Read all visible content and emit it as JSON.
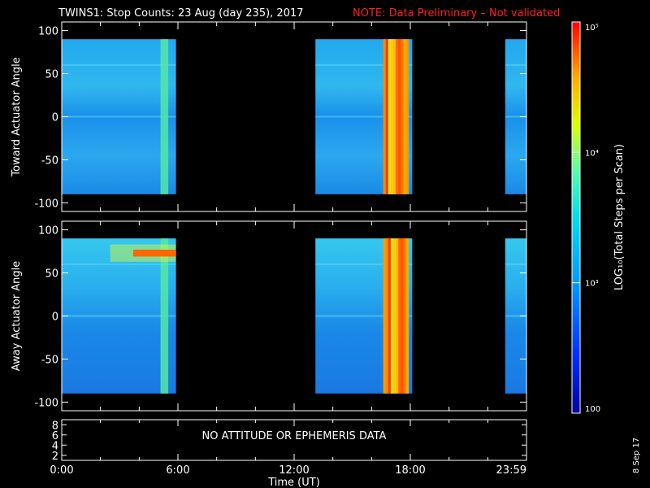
{
  "title": "TWINS1: Stop Counts: 23 Aug (day 235), 2017",
  "note": "NOTE: Data Preliminary – Not validated",
  "note_color": "#ff2020",
  "date_stamp": "8 Sep 17",
  "chart_data": [
    {
      "type": "heatmap",
      "ylabel": "Toward Actuator Angle",
      "ylim": [
        -110,
        110
      ],
      "yticks": [
        "100",
        "50",
        "0",
        "-50",
        "-100"
      ],
      "ytick_values": [
        100,
        50,
        0,
        -50,
        -100
      ],
      "data_angle_range": [
        -90,
        90
      ],
      "xlim_hours": [
        0,
        24
      ],
      "data_intervals_hours": [
        [
          0,
          5.9
        ],
        [
          13.1,
          18.1
        ],
        [
          22.9,
          24
        ]
      ],
      "bright_band_hours": [
        [
          16.6,
          17.9
        ]
      ],
      "bright_stripe_hours": [
        [
          5.1,
          5.5
        ]
      ]
    },
    {
      "type": "heatmap",
      "ylabel": "Away Actuator Angle",
      "ylim": [
        -110,
        110
      ],
      "yticks": [
        "100",
        "50",
        "0",
        "-50",
        "-100"
      ],
      "ytick_values": [
        100,
        50,
        0,
        -50,
        -100
      ],
      "data_angle_range": [
        -90,
        90
      ],
      "xlim_hours": [
        0,
        24
      ],
      "data_intervals_hours": [
        [
          0,
          5.9
        ],
        [
          13.1,
          18.1
        ],
        [
          22.9,
          24
        ]
      ],
      "bright_band_hours": [
        [
          16.6,
          17.9
        ]
      ],
      "bright_stripe_hours": [
        [
          5.1,
          5.5
        ]
      ],
      "hot_feature": {
        "hours": [
          2.5,
          5.9
        ],
        "angle": 73
      }
    },
    {
      "type": "line",
      "yticks": [
        "8",
        "6",
        "4",
        "2"
      ],
      "ytick_values": [
        8,
        6,
        4,
        2
      ],
      "ylim": [
        1,
        9
      ],
      "message": "NO ATTITUDE OR EPHEMERIS DATA",
      "xticks": [
        "0:00",
        "6:00",
        "12:00",
        "18:00",
        "23:59"
      ],
      "xtick_hours": [
        0,
        6,
        12,
        18,
        24
      ],
      "xlabel": "Time (UT)"
    }
  ],
  "colorbar": {
    "label": "LOG₁₀(Total Steps per Scan)",
    "ticks": [
      "10⁵",
      "10⁴",
      "10³",
      "100"
    ],
    "tick_values": [
      100000,
      10000,
      1000,
      100
    ],
    "range": [
      100,
      100000
    ],
    "scale": "log"
  }
}
